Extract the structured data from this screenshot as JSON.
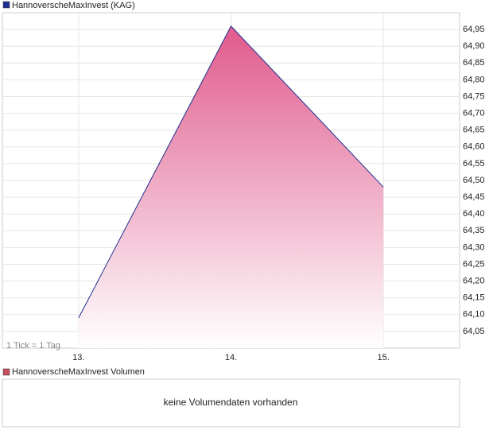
{
  "chart_data": {
    "type": "area",
    "categories": [
      "13.",
      "14.",
      "15."
    ],
    "series": [
      {
        "name": "HannoverscheMaxInvest (KAG)",
        "color": "#1f2f8f",
        "fill_color": "#e05a8c",
        "values": [
          64.09,
          64.96,
          64.48
        ]
      }
    ],
    "ylim": [
      64.0,
      65.0
    ],
    "yticks": [
      {
        "value": 64.05,
        "label": "64,05"
      },
      {
        "value": 64.1,
        "label": "64,10"
      },
      {
        "value": 64.15,
        "label": "64,15"
      },
      {
        "value": 64.2,
        "label": "64,20"
      },
      {
        "value": 64.25,
        "label": "64,25"
      },
      {
        "value": 64.3,
        "label": "64,30"
      },
      {
        "value": 64.35,
        "label": "64,35"
      },
      {
        "value": 64.4,
        "label": "64,40"
      },
      {
        "value": 64.45,
        "label": "64,45"
      },
      {
        "value": 64.5,
        "label": "64,50"
      },
      {
        "value": 64.55,
        "label": "64,55"
      },
      {
        "value": 64.6,
        "label": "64,60"
      },
      {
        "value": 64.65,
        "label": "64,65"
      },
      {
        "value": 64.7,
        "label": "64,70"
      },
      {
        "value": 64.75,
        "label": "64,75"
      },
      {
        "value": 64.8,
        "label": "64,80"
      },
      {
        "value": 64.85,
        "label": "64,85"
      },
      {
        "value": 64.9,
        "label": "64,90"
      },
      {
        "value": 64.95,
        "label": "64,95"
      }
    ],
    "grid": true,
    "annotation": "1 Tick = 1 Tag"
  },
  "volume_chart": {
    "legend": "HannoverscheMaxInvest Volumen",
    "color": "#c8505a",
    "message": "keine Volumendaten vorhanden"
  }
}
